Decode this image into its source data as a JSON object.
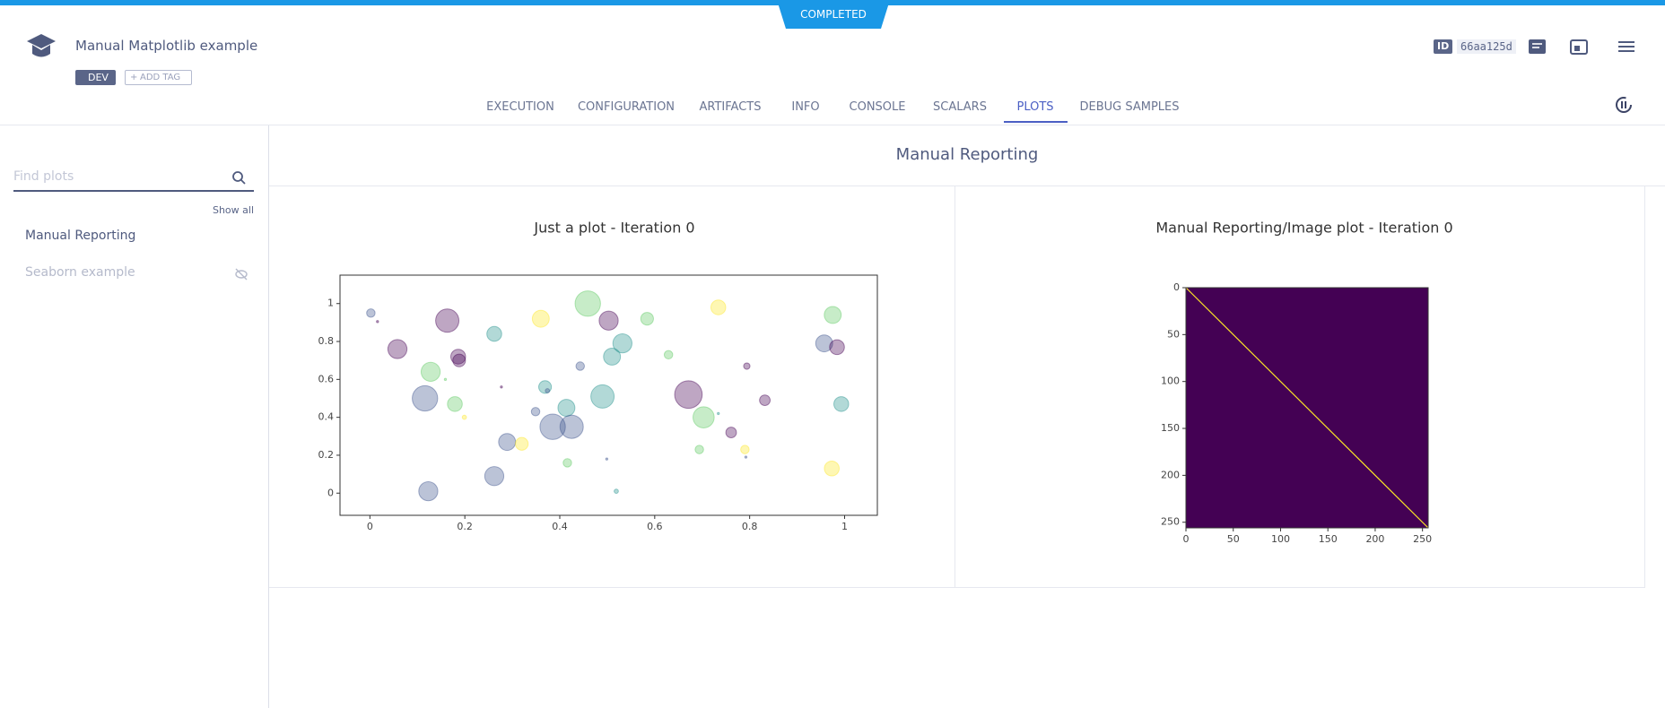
{
  "header": {
    "status": "COMPLETED",
    "title": "Manual Matplotlib example",
    "tags": [
      "DEV"
    ],
    "add_tag": "ADD TAG",
    "id_label": "ID",
    "id": "66aa125d"
  },
  "tabs": [
    "EXECUTION",
    "CONFIGURATION",
    "ARTIFACTS",
    "INFO",
    "CONSOLE",
    "SCALARS",
    "PLOTS",
    "DEBUG SAMPLES"
  ],
  "sidebar": {
    "search_placeholder": "Find plots",
    "show_all": "Show all",
    "items": [
      "Manual Reporting",
      "Seaborn example"
    ]
  },
  "section_title": "Manual Reporting",
  "chart_data": [
    {
      "type": "scatter",
      "title": "Just a plot - Iteration 0",
      "x": [
        0.002,
        0.016,
        0.058,
        0.116,
        0.123,
        0.128,
        0.163,
        0.186,
        0.188,
        0.179,
        0.199,
        0.262,
        0.262,
        0.289,
        0.32,
        0.277,
        0.349,
        0.36,
        0.369,
        0.374,
        0.385,
        0.414,
        0.425,
        0.416,
        0.443,
        0.459,
        0.49,
        0.503,
        0.51,
        0.532,
        0.499,
        0.519,
        0.584,
        0.629,
        0.671,
        0.703,
        0.694,
        0.734,
        0.734,
        0.761,
        0.79,
        0.792,
        0.794,
        0.832,
        0.957,
        0.975,
        0.984,
        0.993,
        0.973,
        0.159
      ],
      "y": [
        0.95,
        0.905,
        0.76,
        0.5,
        0.01,
        0.64,
        0.91,
        0.72,
        0.7,
        0.47,
        0.4,
        0.84,
        0.09,
        0.27,
        0.26,
        0.56,
        0.43,
        0.92,
        0.56,
        0.54,
        0.35,
        0.45,
        0.35,
        0.16,
        0.67,
        1.0,
        0.51,
        0.91,
        0.72,
        0.79,
        0.18,
        0.01,
        0.92,
        0.73,
        0.52,
        0.4,
        0.23,
        0.98,
        0.42,
        0.32,
        0.23,
        0.19,
        0.67,
        0.49,
        0.79,
        0.94,
        0.77,
        0.47,
        0.13,
        0.6
      ],
      "sizes": [
        4,
        1,
        9,
        12,
        9,
        9,
        11,
        7,
        6,
        7,
        2,
        7,
        9,
        8,
        6,
        1,
        4,
        8,
        6,
        2,
        12,
        8,
        11,
        4,
        4,
        12,
        11,
        9,
        8,
        9,
        1,
        2,
        6,
        4,
        13,
        10,
        4,
        7,
        1,
        5,
        4,
        1,
        3,
        5,
        8,
        8,
        7,
        7,
        7,
        1
      ],
      "colors": [
        "#3b528b",
        "#440154",
        "#440154",
        "#3b528b",
        "#3b528b",
        "#5ec962",
        "#440154",
        "#440154",
        "#440154",
        "#5ec962",
        "#fde725",
        "#21918c",
        "#3b528b",
        "#3b528b",
        "#fde725",
        "#440154",
        "#3b528b",
        "#fde725",
        "#21918c",
        "#3b528b",
        "#3b528b",
        "#21918c",
        "#3b528b",
        "#5ec962",
        "#3b528b",
        "#5ec962",
        "#21918c",
        "#440154",
        "#21918c",
        "#21918c",
        "#3b528b",
        "#21918c",
        "#5ec962",
        "#5ec962",
        "#440154",
        "#5ec962",
        "#5ec962",
        "#fde725",
        "#21918c",
        "#440154",
        "#fde725",
        "#3b528b",
        "#440154",
        "#440154",
        "#3b528b",
        "#5ec962",
        "#440154",
        "#21918c",
        "#fde725",
        "#5ec962"
      ],
      "xlim": [
        -0.063,
        1.069
      ],
      "ylim": [
        -0.117,
        1.15
      ],
      "xticks": [
        0,
        0.2,
        0.4,
        0.6,
        0.8,
        1
      ],
      "yticks": [
        0,
        0.2,
        0.4,
        0.6,
        0.8,
        1
      ]
    },
    {
      "type": "image",
      "title": "Manual Reporting/Image plot - Iteration 0",
      "xlim": [
        0,
        256
      ],
      "ylim": [
        256,
        0
      ],
      "xticks": [
        0,
        50,
        100,
        150,
        200,
        250
      ],
      "yticks": [
        0,
        50,
        100,
        150,
        200,
        250
      ],
      "background_color": "#440154",
      "line_color": "#fde725"
    }
  ]
}
